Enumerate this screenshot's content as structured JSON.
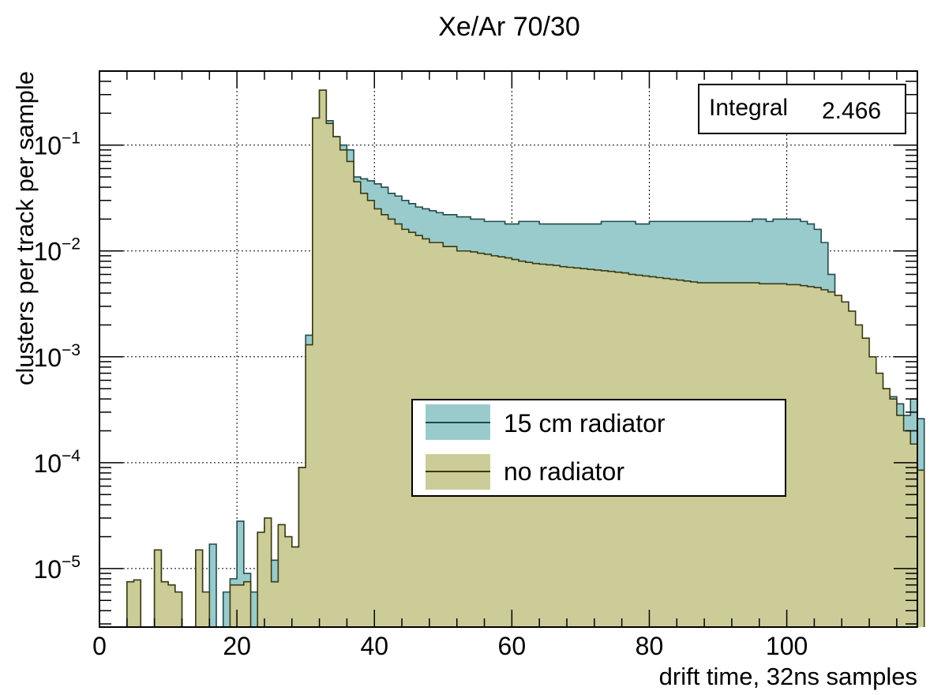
{
  "chart_data": {
    "type": "histogram",
    "title": "Xe/Ar 70/30",
    "xlabel": "drift time,  32ns samples",
    "ylabel": "clusters per track per sample",
    "xlim": [
      0,
      119
    ],
    "ylim": [
      2.8e-06,
      0.5
    ],
    "y_scale": "log",
    "bin_width": 1,
    "grid": true,
    "legend_position": "center-right",
    "x_ticks": [
      0,
      20,
      40,
      60,
      80,
      100
    ],
    "y_tick_labels": [
      {
        "mantissa": "10",
        "exp": "-5",
        "value": 1e-05
      },
      {
        "mantissa": "10",
        "exp": "-4",
        "value": 0.0001
      },
      {
        "mantissa": "10",
        "exp": "-3",
        "value": 0.001
      },
      {
        "mantissa": "10",
        "exp": "-2",
        "value": 0.01
      },
      {
        "mantissa": "10",
        "exp": "-1",
        "value": 0.1
      }
    ],
    "stats_box": {
      "label": "Integral",
      "value": "2.466"
    },
    "series": [
      {
        "name": "15 cm radiator",
        "color": "#9acbcc",
        "edge": "#1f4a4a",
        "values": [
          0,
          0,
          0,
          0,
          7.5e-06,
          7.8e-06,
          0,
          0,
          1.5e-05,
          7.5e-06,
          7e-06,
          6e-06,
          0,
          0,
          1.5e-05,
          6e-06,
          1.7e-05,
          0,
          6e-06,
          8e-06,
          2.8e-05,
          9e-06,
          6e-06,
          2.2e-05,
          2.5e-05,
          1.2e-05,
          2.2e-05,
          1.8e-05,
          1.6e-05,
          9e-05,
          0.0016,
          0.18,
          0.33,
          0.17,
          0.12,
          0.1,
          0.09,
          0.05,
          0.048,
          0.046,
          0.043,
          0.04,
          0.035,
          0.033,
          0.03,
          0.028,
          0.026,
          0.025,
          0.024,
          0.023,
          0.022,
          0.022,
          0.021,
          0.021,
          0.02,
          0.02,
          0.019,
          0.019,
          0.019,
          0.018,
          0.018,
          0.019,
          0.019,
          0.019,
          0.018,
          0.018,
          0.018,
          0.018,
          0.018,
          0.018,
          0.018,
          0.018,
          0.018,
          0.019,
          0.019,
          0.019,
          0.019,
          0.019,
          0.018,
          0.018,
          0.019,
          0.019,
          0.019,
          0.019,
          0.019,
          0.019,
          0.019,
          0.019,
          0.019,
          0.019,
          0.019,
          0.019,
          0.019,
          0.019,
          0.019,
          0.02,
          0.02,
          0.019,
          0.02,
          0.02,
          0.02,
          0.02,
          0.019,
          0.018,
          0.016,
          0.012,
          0.006,
          0.0035,
          0.002,
          0.0015,
          0.0011,
          0.001,
          0.0008,
          0.0006,
          0.0005,
          0.00042,
          0.00036,
          0.00028,
          0.0004,
          0.00026
        ]
      },
      {
        "name": "no radiator",
        "color": "#cccc99",
        "edge": "#3a3a10",
        "values": [
          0,
          0,
          0,
          0,
          7.5e-06,
          7.8e-06,
          0,
          0,
          1.5e-05,
          7.5e-06,
          7e-06,
          6e-06,
          0,
          0,
          1.5e-05,
          6e-06,
          0,
          0,
          0,
          7e-06,
          7e-06,
          7.5e-06,
          0,
          2.2e-05,
          3e-05,
          7.5e-06,
          2.6e-05,
          2e-05,
          1.6e-05,
          9e-05,
          0.0013,
          0.18,
          0.33,
          0.16,
          0.12,
          0.09,
          0.07,
          0.045,
          0.035,
          0.03,
          0.025,
          0.022,
          0.02,
          0.018,
          0.016,
          0.015,
          0.014,
          0.013,
          0.012,
          0.012,
          0.011,
          0.011,
          0.01,
          0.01,
          0.0098,
          0.0095,
          0.0093,
          0.009,
          0.0088,
          0.0086,
          0.0083,
          0.008,
          0.0078,
          0.0076,
          0.0075,
          0.0074,
          0.0073,
          0.0071,
          0.007,
          0.0069,
          0.0068,
          0.0067,
          0.0066,
          0.0065,
          0.0064,
          0.0063,
          0.0062,
          0.006,
          0.0059,
          0.0058,
          0.0057,
          0.0056,
          0.0055,
          0.0054,
          0.0053,
          0.0052,
          0.0051,
          0.005,
          0.005,
          0.005,
          0.005,
          0.005,
          0.005,
          0.005,
          0.005,
          0.005,
          0.0049,
          0.0049,
          0.0049,
          0.0049,
          0.0048,
          0.0048,
          0.0047,
          0.0046,
          0.0045,
          0.0043,
          0.0041,
          0.0038,
          0.0033,
          0.0027,
          0.002,
          0.0015,
          0.001,
          0.0007,
          0.0005,
          0.0004,
          0.00028,
          0.0002,
          0.00015,
          8.5e-05
        ]
      }
    ]
  }
}
